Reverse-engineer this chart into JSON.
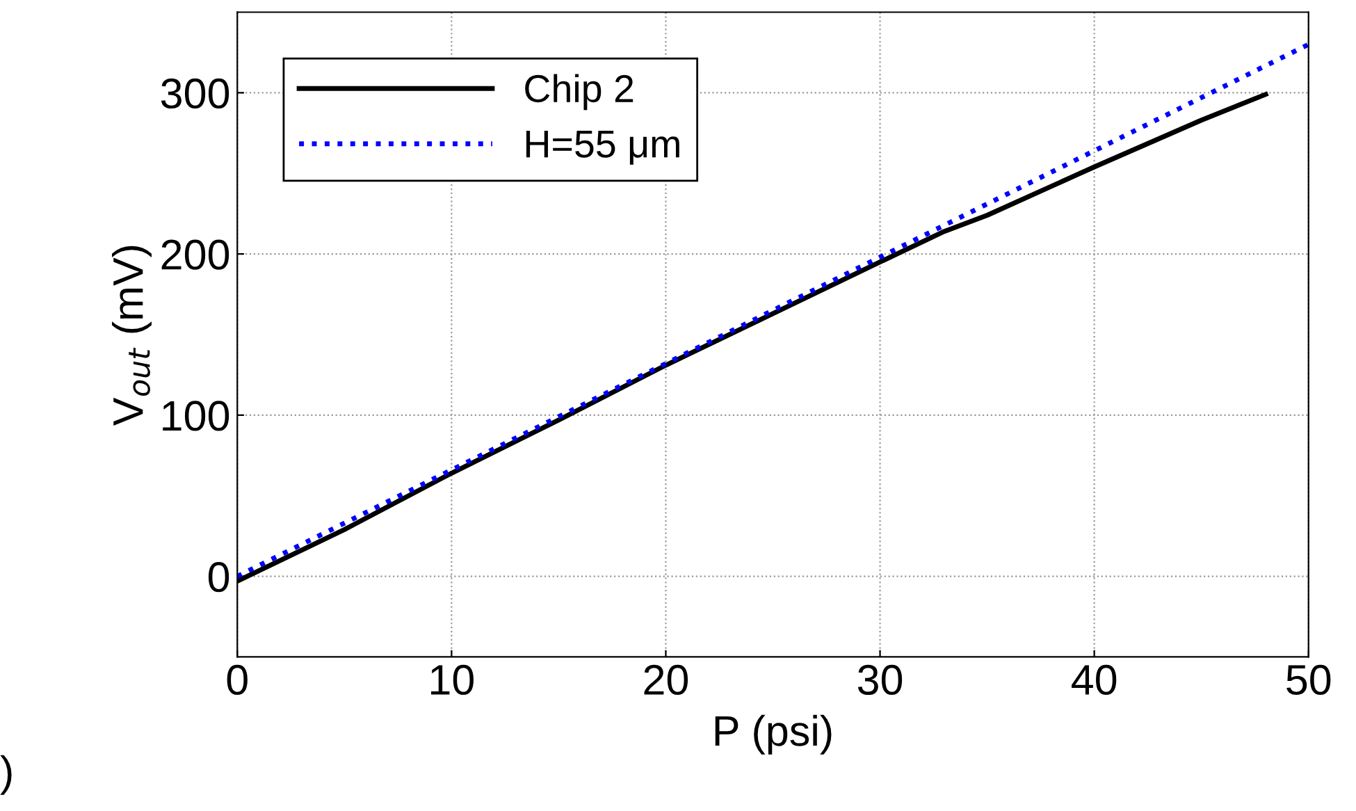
{
  "chart_data": {
    "type": "line",
    "xlabel": "P (psi)",
    "ylabel": "V$_{out}$ (mV)",
    "x": [
      0,
      5,
      10,
      15,
      20,
      25,
      30,
      33,
      35,
      40,
      45,
      48
    ],
    "series": [
      {
        "name": "Chip 2",
        "color": "#000000",
        "line_style": "solid",
        "values": [
          -3,
          29,
          64,
          97,
          131,
          163,
          195,
          214,
          224,
          254,
          283,
          299
        ]
      },
      {
        "name": "H=55 μm",
        "color": "#0000ff",
        "line_style": "dotted",
        "x": [
          0,
          50
        ],
        "values": [
          0,
          330
        ]
      }
    ],
    "xlim": [
      0,
      50
    ],
    "ylim": [
      -50,
      350
    ],
    "xticks": [
      0,
      10,
      20,
      30,
      40,
      50
    ],
    "yticks": [
      0,
      100,
      200,
      300
    ],
    "grid": true,
    "legend": "top left",
    "marker": "none",
    "annotations": [
      ")"
    ]
  }
}
